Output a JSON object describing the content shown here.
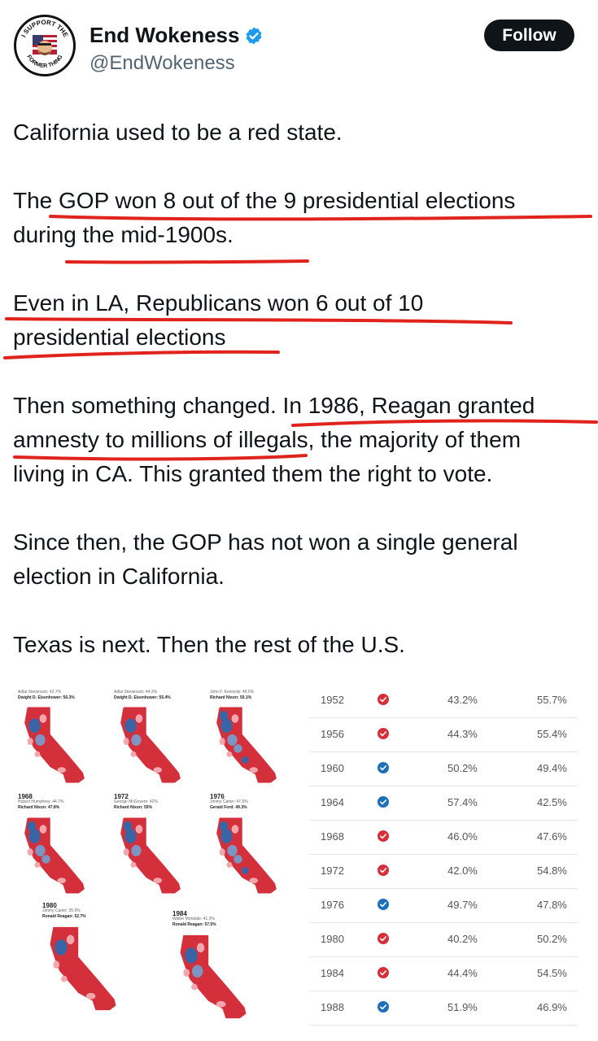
{
  "header": {
    "display_name": "End Wokeness",
    "handle": "@EndWokeness",
    "follow_label": "Follow",
    "avatar_text_top": "I SUPPORT THE",
    "avatar_text_bottom": "FORMER THING"
  },
  "tweet": {
    "paragraphs": [
      [
        "California used to be a red state."
      ],
      [
        "The GOP won 8 out of the 9 presidential elections",
        "during the mid-1900s."
      ],
      [
        "Even in LA, Republicans won 6 out of 10",
        "presidential elections"
      ],
      [
        "Then something changed. In 1986, Reagan granted",
        "amnesty to millions of illegals, the majority of them",
        "living in CA. This granted them the right to vote."
      ],
      [
        "Since then, the GOP has not won a single general",
        "election in California."
      ],
      [
        "Texas is next. Then the rest of the U.S."
      ]
    ]
  },
  "maps": [
    {
      "year": "",
      "loser": "Adlai Stevenson: 42.7%",
      "winner": "Dwight D. Eisenhower: 56.3%",
      "winner_color": "#d3303c"
    },
    {
      "year": "",
      "loser": "Adlai Stevenson: 44.3%",
      "winner": "Dwight D. Eisenhower: 55.4%",
      "winner_color": "#d3303c"
    },
    {
      "year": "",
      "loser": "John F. Kennedy: 49.6%",
      "winner": "Richard Nixon: 50.1%",
      "winner_color": "#d3303c"
    },
    {
      "year": "1968",
      "loser": "Hubert Humphrey: 44.7%",
      "winner": "Richard Nixon: 47.8%",
      "winner_color": "#d3303c"
    },
    {
      "year": "1972",
      "loser": "George McGovern: 42%",
      "winner": "Richard Nixon: 55%",
      "winner_color": "#d3303c"
    },
    {
      "year": "1976",
      "loser": "Jimmy Carter: 47.6%",
      "winner": "Gerald Ford: 49.3%",
      "winner_color": "#d3303c"
    },
    {
      "year": "1980",
      "loser": "Jimmy Carter: 35.9%",
      "winner": "Ronald Reagan: 52.7%",
      "winner_color": "#d3303c"
    },
    {
      "year": "1984",
      "loser": "Walter Mondale: 41.3%",
      "winner": "Ronald Reagan: 57.5%",
      "winner_color": "#d3303c"
    }
  ],
  "results": [
    {
      "year": "1952",
      "party": "rep",
      "dem": "43.2%",
      "rep": "55.7%"
    },
    {
      "year": "1956",
      "party": "rep",
      "dem": "44.3%",
      "rep": "55.4%"
    },
    {
      "year": "1960",
      "party": "dem",
      "dem": "50.2%",
      "rep": "49.4%"
    },
    {
      "year": "1964",
      "party": "dem",
      "dem": "57.4%",
      "rep": "42.5%"
    },
    {
      "year": "1968",
      "party": "rep",
      "dem": "46.0%",
      "rep": "47.6%"
    },
    {
      "year": "1972",
      "party": "rep",
      "dem": "42.0%",
      "rep": "54.8%"
    },
    {
      "year": "1976",
      "party": "dem",
      "dem": "49.7%",
      "rep": "47.8%"
    },
    {
      "year": "1980",
      "party": "rep",
      "dem": "40.2%",
      "rep": "50.2%"
    },
    {
      "year": "1984",
      "party": "rep",
      "dem": "44.4%",
      "rep": "54.5%"
    },
    {
      "year": "1988",
      "party": "dem",
      "dem": "51.9%",
      "rep": "46.9%"
    }
  ],
  "colors": {
    "rep": "#d3303c",
    "dem": "#1d6fb8",
    "underline": "#e0231c",
    "verified": "#1d9bf0"
  }
}
